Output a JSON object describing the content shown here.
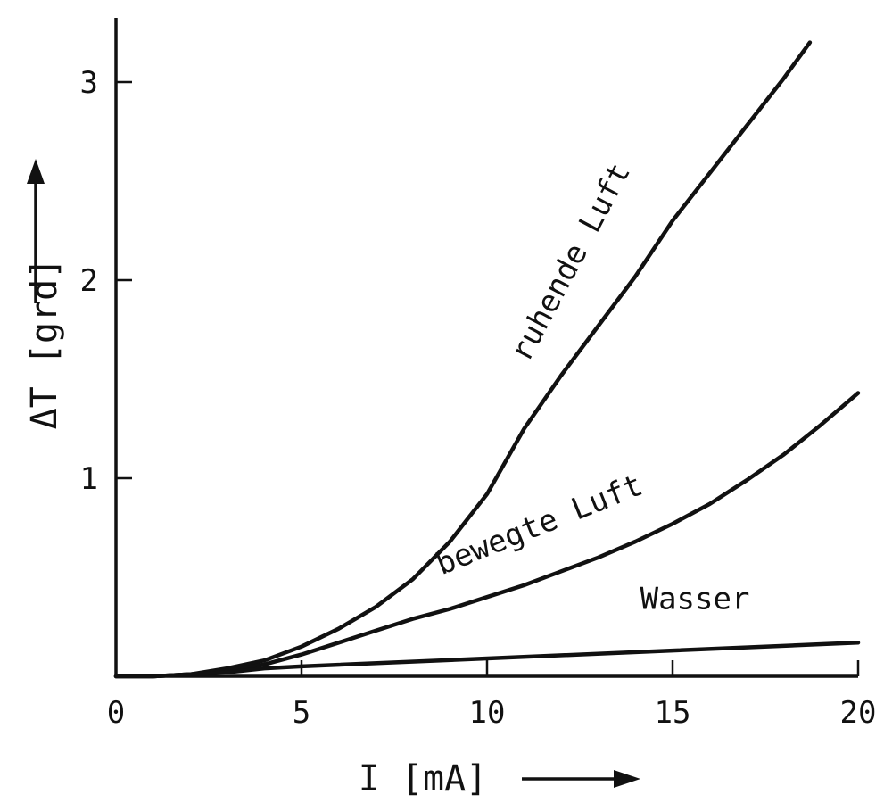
{
  "chart_data": {
    "type": "line",
    "xlabel": "I [mA]",
    "ylabel": "ΔT [grd]",
    "xlim": [
      0,
      20
    ],
    "ylim": [
      0,
      3.3
    ],
    "x_ticks": [
      "0",
      "5",
      "10",
      "15",
      "20"
    ],
    "y_ticks": [
      "1",
      "2",
      "3"
    ],
    "grid": false,
    "series": [
      {
        "name": "ruhende Luft",
        "x": [
          0,
          1,
          2,
          3,
          4,
          5,
          6,
          7,
          8,
          9,
          10,
          11,
          12,
          13,
          14,
          15,
          16,
          17,
          18,
          18.7
        ],
        "y": [
          0,
          0.0,
          0.01,
          0.04,
          0.08,
          0.15,
          0.24,
          0.35,
          0.49,
          0.68,
          0.92,
          1.25,
          1.52,
          1.77,
          2.02,
          2.3,
          2.54,
          2.78,
          3.02,
          3.2
        ]
      },
      {
        "name": "bewegte Luft",
        "x": [
          0,
          1,
          2,
          3,
          4,
          5,
          6,
          7,
          8,
          9,
          10,
          11,
          12,
          13,
          14,
          15,
          16,
          17,
          18,
          19,
          20
        ],
        "y": [
          0,
          0.0,
          0.01,
          0.03,
          0.06,
          0.11,
          0.17,
          0.23,
          0.29,
          0.34,
          0.4,
          0.46,
          0.53,
          0.6,
          0.68,
          0.77,
          0.87,
          0.99,
          1.12,
          1.27,
          1.43
        ]
      },
      {
        "name": "Wasser",
        "x": [
          0,
          1,
          2,
          3,
          4,
          5,
          10,
          15,
          20
        ],
        "y": [
          0,
          0.0,
          0.01,
          0.02,
          0.04,
          0.05,
          0.09,
          0.13,
          0.17
        ]
      }
    ],
    "label_rotation_deg": [
      -62,
      -22,
      0
    ]
  }
}
